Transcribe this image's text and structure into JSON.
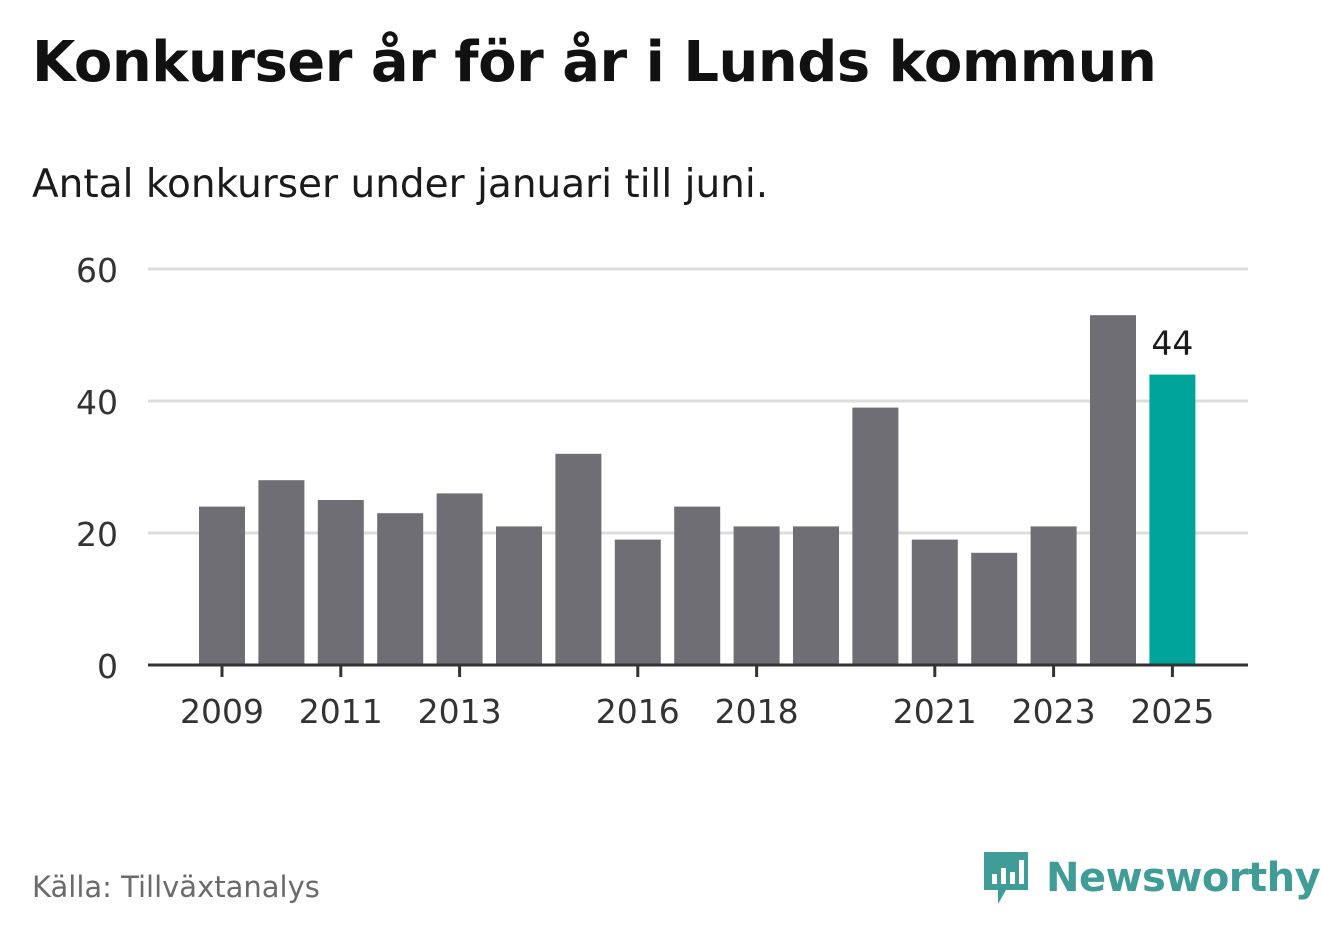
{
  "header": {
    "title": "Konkurser år för år i Lunds kommun",
    "subtitle": "Antal konkurser under januari till juni."
  },
  "footer": {
    "source": "Källa: Tillväxtanalys",
    "brand": "Newsworthy",
    "brand_icon": "newsworthy-logo-icon"
  },
  "colors": {
    "bar": "#6f6e74",
    "highlight": "#00a49a",
    "grid": "#dcdcdc",
    "axis": "#333333",
    "brand": "#3f9c96"
  },
  "chart_data": {
    "type": "bar",
    "title": "Konkurser år för år i Lunds kommun",
    "subtitle": "Antal konkurser under januari till juni.",
    "categories": [
      "2009",
      "2010",
      "2011",
      "2012",
      "2013",
      "2014",
      "2015",
      "2016",
      "2017",
      "2018",
      "2019",
      "2020",
      "2021",
      "2022",
      "2023",
      "2024",
      "2025"
    ],
    "values": [
      24,
      28,
      25,
      23,
      26,
      21,
      32,
      19,
      24,
      21,
      21,
      39,
      19,
      17,
      21,
      53,
      44
    ],
    "x_tick_labels": [
      "2009",
      "2011",
      "2013",
      "2016",
      "2018",
      "2021",
      "2023",
      "2025"
    ],
    "y_ticks": [
      0,
      20,
      40,
      60
    ],
    "ylim": [
      0,
      60
    ],
    "grid": true,
    "highlight_category": "2025",
    "data_labels": [
      {
        "category": "2025",
        "value": "44"
      }
    ],
    "xlabel": "",
    "ylabel": ""
  }
}
